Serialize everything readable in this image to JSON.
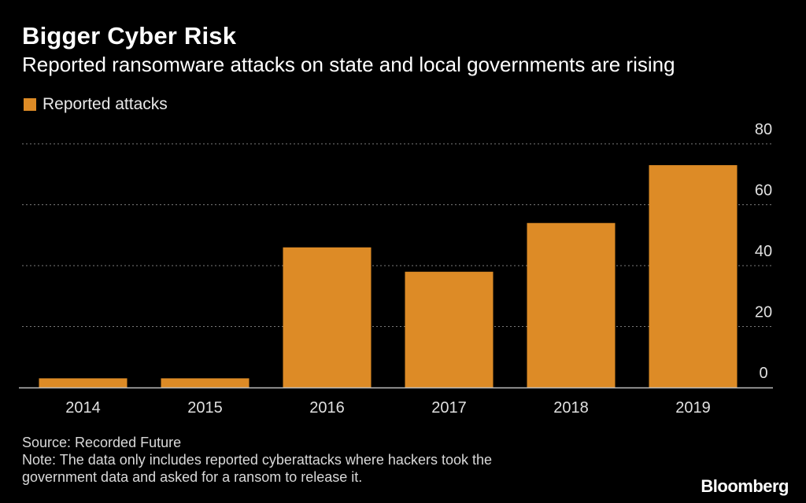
{
  "header": {
    "title": "Bigger Cyber Risk",
    "subtitle": "Reported ransomware attacks on state and local governments are rising"
  },
  "legend": {
    "label": "Reported attacks",
    "swatch_color": "#dd8b26"
  },
  "chart_data": {
    "type": "bar",
    "title": "Bigger Cyber Risk",
    "subtitle": "Reported ransomware attacks on state and local governments are rising",
    "categories": [
      "2014",
      "2015",
      "2016",
      "2017",
      "2018",
      "2019"
    ],
    "series": [
      {
        "name": "Reported attacks",
        "values": [
          3,
          3,
          46,
          38,
          54,
          73
        ]
      }
    ],
    "xlabel": "",
    "ylabel": "",
    "ylim": [
      0,
      80
    ],
    "yticks": [
      0,
      20,
      40,
      60,
      80
    ],
    "ytick_labels": [
      "0",
      "20",
      "40",
      "60",
      "80"
    ],
    "y_axis_side": "right",
    "grid": true,
    "bar_color": "#dd8b26",
    "legend_position": "top-left"
  },
  "footer": {
    "source": "Source: Recorded Future",
    "note_line1": "Note: The data only includes reported cyberattacks where hackers took the",
    "note_line2": "government data and asked for a ransom to release it.",
    "brand": "Bloomberg"
  }
}
